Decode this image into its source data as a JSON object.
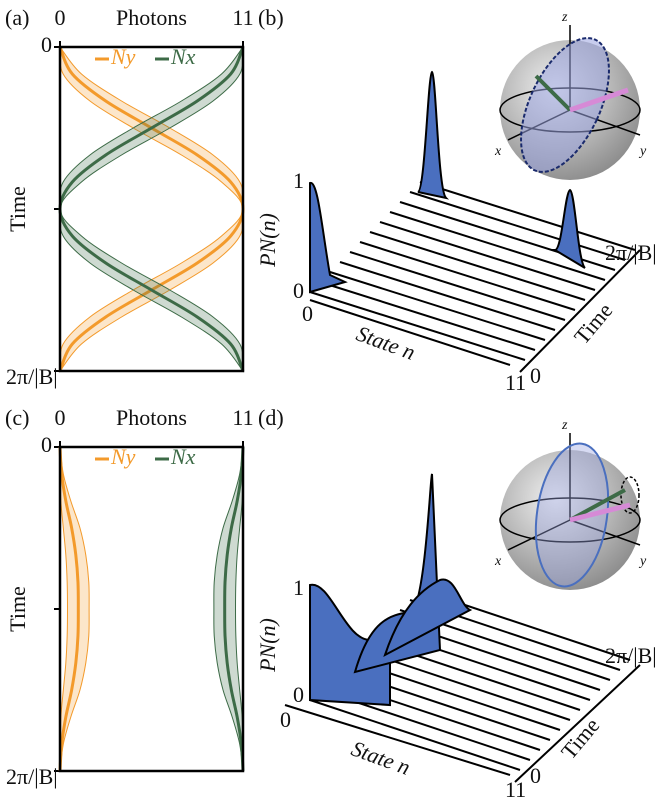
{
  "chart_data": [
    {
      "type": "line",
      "panel": "(a)",
      "title": "Photons",
      "xlabel": "Time",
      "x": [
        0,
        0.0833,
        0.1667,
        0.25,
        0.3333,
        0.4167,
        0.5,
        0.5833,
        0.6667,
        0.75,
        0.8333,
        0.9167,
        1
      ],
      "xlim": [
        0,
        1
      ],
      "xticks": [
        0,
        {
          "value": 0.5,
          "label": null
        },
        {
          "value": 1,
          "label": "2π/|B|"
        }
      ],
      "ylim": [
        0,
        11
      ],
      "yticks": [
        0,
        11
      ],
      "series": [
        {
          "name": "Ny",
          "color": "#f39a2b",
          "values": [
            0,
            0.74,
            2.75,
            5.5,
            8.25,
            10.26,
            11,
            10.26,
            8.25,
            5.5,
            2.75,
            0.74,
            0
          ],
          "lower": [
            0,
            0.19,
            1.8,
            4.4,
            7.3,
            9.71,
            11,
            9.71,
            7.3,
            4.4,
            1.8,
            0.19,
            0
          ],
          "upper": [
            0,
            1.29,
            3.7,
            6.6,
            9.2,
            10.81,
            11,
            10.81,
            9.2,
            6.6,
            3.7,
            1.29,
            0
          ]
        },
        {
          "name": "Nx",
          "color": "#3d6b47",
          "values": [
            11,
            10.26,
            8.25,
            5.5,
            2.75,
            0.74,
            0,
            0.74,
            2.75,
            5.5,
            8.25,
            10.26,
            11
          ],
          "lower": [
            11,
            9.71,
            7.3,
            4.4,
            1.8,
            0.19,
            0,
            0.19,
            1.8,
            4.4,
            7.3,
            9.71,
            11
          ],
          "upper": [
            11,
            10.81,
            9.2,
            6.6,
            3.7,
            1.29,
            0,
            1.29,
            3.7,
            6.6,
            9.2,
            10.81,
            11
          ]
        }
      ]
    },
    {
      "type": "line",
      "panel": "(c)",
      "title": "Photons",
      "xlabel": "Time",
      "x": [
        0,
        0.0833,
        0.1667,
        0.25,
        0.3333,
        0.4167,
        0.5,
        0.5833,
        0.6667,
        0.75,
        0.8333,
        0.9167,
        1
      ],
      "xlim": [
        0,
        1
      ],
      "xticks": [
        0,
        {
          "value": 0.5,
          "label": null
        },
        {
          "value": 1,
          "label": "2π/|B|"
        }
      ],
      "ylim": [
        0,
        11
      ],
      "yticks": [
        0,
        11
      ],
      "series": [
        {
          "name": "Ny",
          "color": "#f39a2b",
          "values": [
            0,
            0.1,
            0.35,
            0.7,
            0.95,
            1.08,
            1.1,
            1.08,
            0.95,
            0.7,
            0.35,
            0.1,
            0
          ],
          "lower": [
            0,
            0,
            0.05,
            0.2,
            0.35,
            0.43,
            0.45,
            0.43,
            0.35,
            0.2,
            0.05,
            0,
            0
          ],
          "upper": [
            0,
            0.2,
            0.65,
            1.2,
            1.55,
            1.73,
            1.75,
            1.73,
            1.55,
            1.2,
            0.65,
            0.2,
            0
          ]
        },
        {
          "name": "Nx",
          "color": "#3d6b47",
          "values": [
            11,
            10.9,
            10.65,
            10.3,
            10.05,
            9.92,
            9.9,
            9.92,
            10.05,
            10.3,
            10.65,
            10.9,
            11
          ],
          "lower": [
            11,
            10.8,
            10.35,
            9.8,
            9.45,
            9.27,
            9.25,
            9.27,
            9.45,
            9.8,
            10.35,
            10.8,
            11
          ],
          "upper": [
            11,
            11,
            10.95,
            10.8,
            10.65,
            10.57,
            10.55,
            10.57,
            10.65,
            10.8,
            10.95,
            11,
            11
          ]
        }
      ]
    }
  ],
  "panels": [
    {
      "label": "(b)",
      "ylabel": "PN(n)",
      "yticks": [
        "1",
        "0"
      ],
      "xlabel": "State n",
      "xticks": [
        "0",
        "11"
      ],
      "zlabel": "Time",
      "zticks": [
        "0",
        "2π/|B|"
      ],
      "sphere_axes": [
        "x",
        "y",
        "z"
      ]
    },
    {
      "label": "(d)",
      "ylabel": "PN(n)",
      "yticks": [
        "1",
        "0"
      ],
      "xlabel": "State n",
      "xticks": [
        "0",
        "11"
      ],
      "zlabel": "Time",
      "zticks": [
        "0",
        "2π/|B|"
      ],
      "sphere_axes": [
        "x",
        "y",
        "z"
      ]
    }
  ]
}
